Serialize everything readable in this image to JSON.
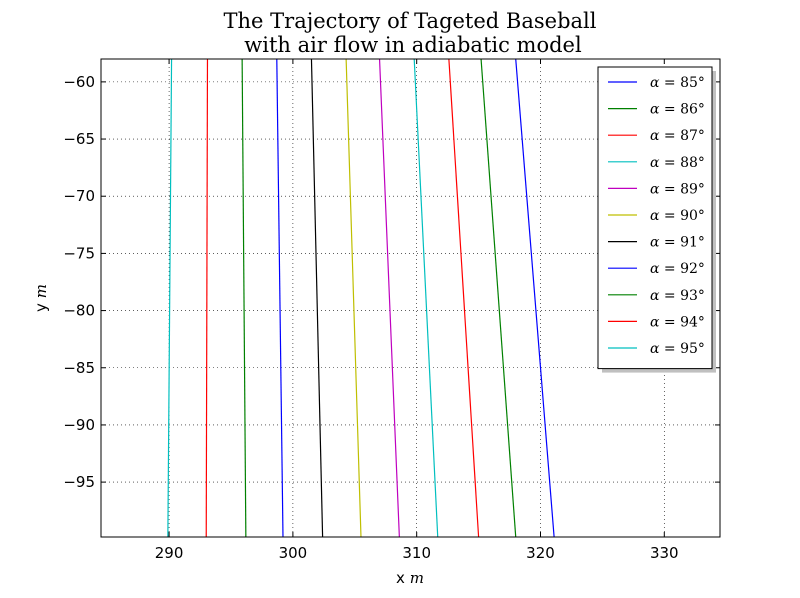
{
  "chart_data": {
    "type": "line",
    "title_lines": [
      "The Trajectory of Tageted Baseball",
      "with air flow in adiabatic model"
    ],
    "xlabel": {
      "text": "x",
      "unit": "m"
    },
    "ylabel": {
      "text": "y",
      "unit": "m"
    },
    "xlim": [
      284.5,
      334.5
    ],
    "ylim": [
      -99.8,
      -58.0
    ],
    "xticks": [
      290,
      300,
      310,
      320,
      330
    ],
    "xtick_labels": [
      "290",
      "300",
      "310",
      "320",
      "330"
    ],
    "yticks": [
      -60,
      -65,
      -70,
      -75,
      -80,
      -85,
      -90,
      -95
    ],
    "ytick_labels": [
      "−60",
      "−65",
      "−70",
      "−75",
      "−80",
      "−85",
      "−90",
      "−95"
    ],
    "grid": true,
    "legend_position": "top-right",
    "series": [
      {
        "name": "α = 85°",
        "label_symbol": "α",
        "label_value": "85°",
        "color": "#0000ff",
        "x": [
          318.0,
          321.1
        ],
        "y": [
          -58.0,
          -99.8
        ]
      },
      {
        "name": "α = 86°",
        "label_symbol": "α",
        "label_value": "86°",
        "color": "#008000",
        "x": [
          315.2,
          318.0
        ],
        "y": [
          -58.0,
          -99.8
        ]
      },
      {
        "name": "α = 87°",
        "label_symbol": "α",
        "label_value": "87°",
        "color": "#ff0000",
        "x": [
          312.6,
          315.0
        ],
        "y": [
          -58.0,
          -99.8
        ]
      },
      {
        "name": "α = 88°",
        "label_symbol": "α",
        "label_value": "88°",
        "color": "#00bfbf",
        "x": [
          309.8,
          311.7
        ],
        "y": [
          -58.0,
          -99.8
        ]
      },
      {
        "name": "α = 89°",
        "label_symbol": "α",
        "label_value": "89°",
        "color": "#bf00bf",
        "x": [
          307.0,
          308.6
        ],
        "y": [
          -58.0,
          -99.8
        ]
      },
      {
        "name": "α = 90°",
        "label_symbol": "α",
        "label_value": "90°",
        "color": "#bfbf00",
        "x": [
          304.3,
          305.5
        ],
        "y": [
          -58.0,
          -99.8
        ]
      },
      {
        "name": "α = 91°",
        "label_symbol": "α",
        "label_value": "91°",
        "color": "#000000",
        "x": [
          301.5,
          302.4
        ],
        "y": [
          -58.0,
          -99.8
        ]
      },
      {
        "name": "α = 92°",
        "label_symbol": "α",
        "label_value": "92°",
        "color": "#0000ff",
        "x": [
          298.7,
          299.2
        ],
        "y": [
          -58.0,
          -99.8
        ]
      },
      {
        "name": "α = 93°",
        "label_symbol": "α",
        "label_value": "93°",
        "color": "#008000",
        "x": [
          295.9,
          296.2
        ],
        "y": [
          -58.0,
          -99.8
        ]
      },
      {
        "name": "α = 94°",
        "label_symbol": "α",
        "label_value": "94°",
        "color": "#ff0000",
        "x": [
          293.1,
          293.0
        ],
        "y": [
          -58.0,
          -99.8
        ]
      },
      {
        "name": "α = 95°",
        "label_symbol": "α",
        "label_value": "95°",
        "color": "#00bfbf",
        "x": [
          290.2,
          289.9
        ],
        "y": [
          -58.0,
          -99.8
        ]
      }
    ]
  }
}
